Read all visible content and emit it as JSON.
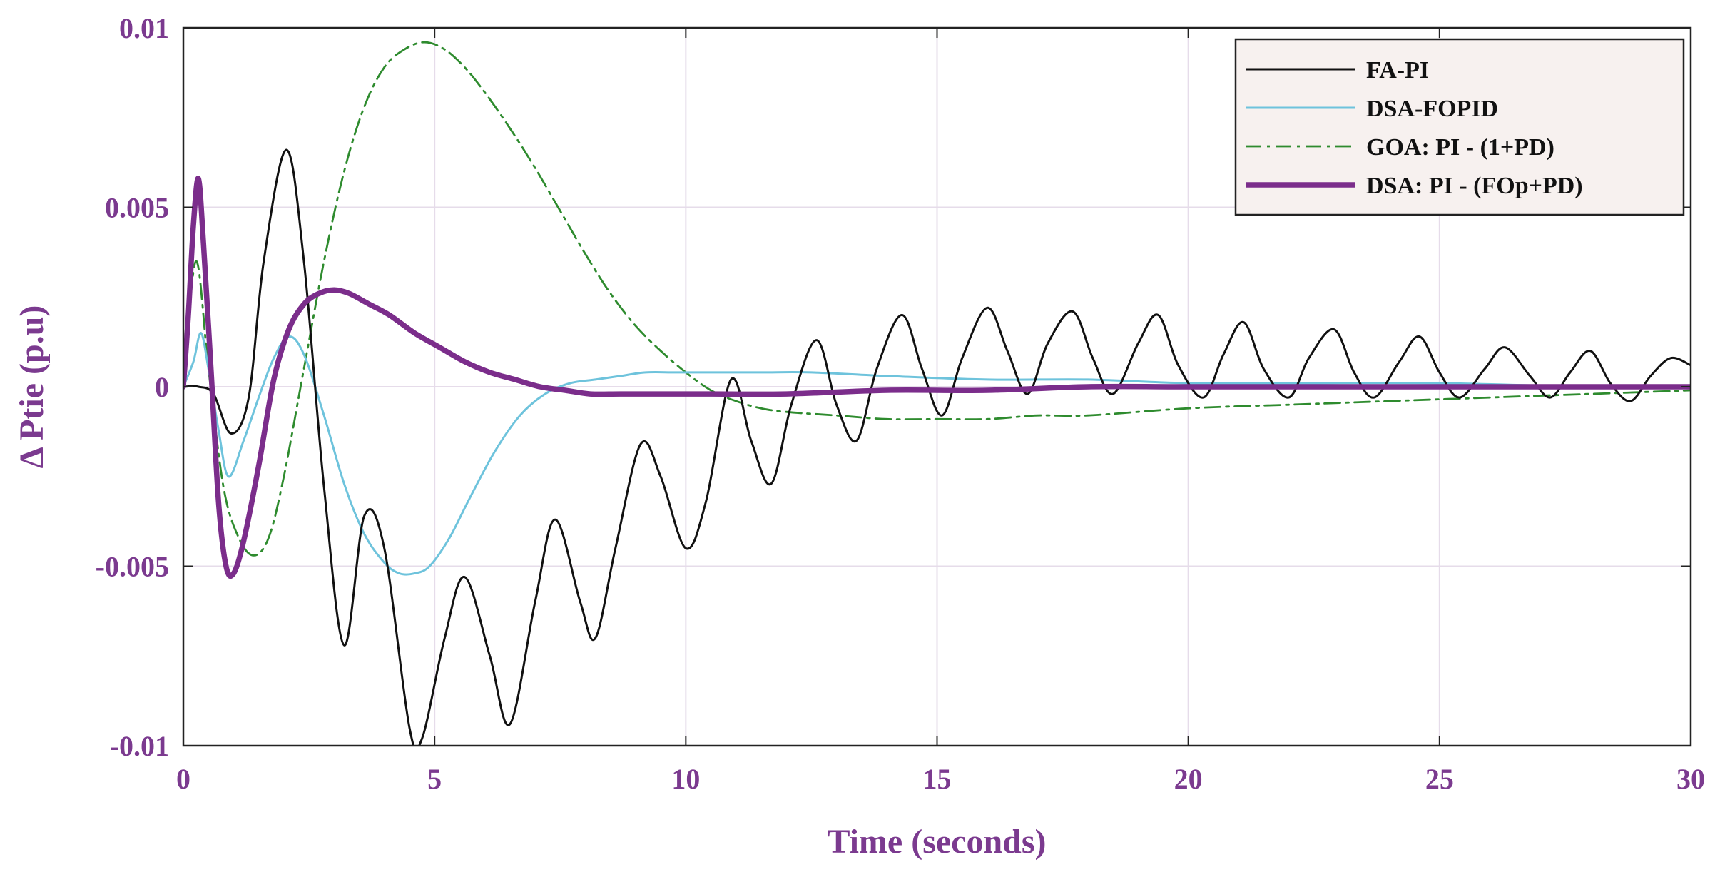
{
  "chart_data": {
    "type": "line",
    "title": "",
    "xlabel": "Time (seconds)",
    "ylabel": "Δ Ptie (p.u)",
    "xlim": [
      0,
      30
    ],
    "ylim": [
      -0.01,
      0.01
    ],
    "xticks": [
      0,
      5,
      10,
      15,
      20,
      25,
      30
    ],
    "xtick_labels": [
      "0",
      "5",
      "10",
      "15",
      "20",
      "25",
      "30"
    ],
    "yticks": [
      0.01,
      0.005,
      0,
      -0.005,
      -0.01
    ],
    "ytick_labels": [
      "0.01",
      "0.005",
      "0",
      "-0.005",
      "-0.01"
    ],
    "grid": true,
    "legend_position": "top-right",
    "series": [
      {
        "name": "FA-PI",
        "color": "#111111",
        "style": "solid",
        "x": [
          0,
          0.3,
          0.6,
          0.95,
          1.3,
          1.6,
          2.05,
          2.4,
          2.8,
          3.2,
          3.6,
          4.0,
          4.5,
          4.75,
          5.2,
          5.6,
          6.1,
          6.5,
          7.0,
          7.4,
          7.9,
          8.2,
          8.6,
          9.1,
          9.5,
          10.0,
          10.4,
          10.9,
          11.3,
          11.7,
          12.1,
          12.6,
          13.0,
          13.4,
          13.8,
          14.3,
          14.7,
          15.1,
          15.5,
          16.0,
          16.4,
          16.8,
          17.2,
          17.7,
          18.1,
          18.5,
          19.0,
          19.4,
          19.8,
          20.3,
          20.7,
          21.1,
          21.5,
          22.0,
          22.4,
          22.9,
          23.3,
          23.7,
          24.2,
          24.6,
          25.0,
          25.4,
          25.9,
          26.3,
          26.8,
          27.2,
          27.6,
          28.0,
          28.4,
          28.8,
          29.2,
          29.6,
          30.0
        ],
        "y": [
          0,
          0,
          -0.0002,
          -0.0013,
          -0.0003,
          0.0035,
          0.0066,
          0.0035,
          -0.0028,
          -0.0072,
          -0.0036,
          -0.0045,
          -0.0095,
          -0.0098,
          -0.007,
          -0.0053,
          -0.0075,
          -0.0094,
          -0.006,
          -0.0037,
          -0.006,
          -0.007,
          -0.0045,
          -0.0016,
          -0.0025,
          -0.0045,
          -0.0032,
          0.0002,
          -0.0015,
          -0.0027,
          -0.0005,
          0.0013,
          -0.0005,
          -0.0015,
          0.0005,
          0.002,
          0.0005,
          -0.0008,
          0.0008,
          0.0022,
          0.001,
          -0.0002,
          0.0012,
          0.0021,
          0.0008,
          -0.0002,
          0.0012,
          0.002,
          0.0006,
          -0.0003,
          0.0009,
          0.0018,
          0.0005,
          -0.0003,
          0.0008,
          0.0016,
          0.0004,
          -0.0003,
          0.0007,
          0.0014,
          0.0004,
          -0.0003,
          0.0005,
          0.0011,
          0.0003,
          -0.0003,
          0.0004,
          0.001,
          0.0001,
          -0.0004,
          0.0003,
          0.0008,
          0.0006
        ]
      },
      {
        "name": "DSA-FOPID",
        "color": "#6ec3dc",
        "style": "solid",
        "x": [
          0,
          0.2,
          0.35,
          0.5,
          0.7,
          0.9,
          1.2,
          1.5,
          1.8,
          2.1,
          2.4,
          2.8,
          3.2,
          3.6,
          4.0,
          4.3,
          4.6,
          4.9,
          5.3,
          5.7,
          6.2,
          6.7,
          7.2,
          7.7,
          8.2,
          8.7,
          9.2,
          9.8,
          10.5,
          11.5,
          12.5,
          14.0,
          16.0,
          18.0,
          20.0,
          22.0,
          25.0,
          28.0,
          30.0
        ],
        "y": [
          0,
          0.0007,
          0.0015,
          0.0005,
          -0.0012,
          -0.0025,
          -0.0015,
          -0.0003,
          0.0008,
          0.0014,
          0.0009,
          -0.0008,
          -0.0027,
          -0.0041,
          -0.0049,
          -0.0052,
          -0.0052,
          -0.005,
          -0.0042,
          -0.0031,
          -0.0018,
          -0.0008,
          -0.0002,
          0.0001,
          0.0002,
          0.0003,
          0.0004,
          0.0004,
          0.0004,
          0.0004,
          0.0004,
          0.0003,
          0.0002,
          0.0002,
          0.0001,
          0.0001,
          0.0001,
          0.0,
          0.0
        ]
      },
      {
        "name": "GOA: PI - (1+PD)",
        "color": "#2e8b2e",
        "style": "dashdot",
        "x": [
          0,
          0.25,
          0.5,
          0.8,
          1.1,
          1.4,
          1.7,
          2.0,
          2.4,
          2.8,
          3.2,
          3.6,
          4.0,
          4.4,
          4.8,
          5.2,
          5.6,
          6.0,
          6.5,
          7.0,
          7.5,
          8.0,
          8.5,
          9.0,
          9.5,
          10.0,
          10.5,
          11.0,
          11.5,
          12.0,
          13.0,
          14.0,
          15.0,
          16.0,
          17.0,
          18.0,
          20.0,
          22.0,
          24.0,
          26.0,
          28.0,
          30.0
        ],
        "y": [
          0,
          0.0035,
          0.0005,
          -0.0028,
          -0.0042,
          -0.0047,
          -0.0042,
          -0.0025,
          0.0005,
          0.0035,
          0.006,
          0.0078,
          0.0089,
          0.0094,
          0.0096,
          0.0094,
          0.0089,
          0.0082,
          0.0072,
          0.0061,
          0.0049,
          0.0037,
          0.0026,
          0.0017,
          0.001,
          0.0004,
          -0.0001,
          -0.0004,
          -0.0006,
          -0.0007,
          -0.0008,
          -0.0009,
          -0.0009,
          -0.0009,
          -0.0008,
          -0.0008,
          -0.0006,
          -0.0005,
          -0.0004,
          -0.0003,
          -0.0002,
          -0.0001
        ]
      },
      {
        "name": "DSA: PI - (FOp+PD)",
        "color": "#7b2d8b",
        "style": "solid-thick",
        "x": [
          0,
          0.1,
          0.2,
          0.3,
          0.4,
          0.55,
          0.7,
          0.85,
          1.0,
          1.2,
          1.5,
          1.8,
          2.1,
          2.4,
          2.7,
          3.0,
          3.3,
          3.7,
          4.1,
          4.6,
          5.1,
          5.6,
          6.1,
          6.6,
          7.1,
          7.6,
          8.1,
          8.7,
          9.5,
          10.5,
          12.0,
          14.0,
          16.0,
          18.0,
          20.0,
          22.0,
          25.0,
          28.0,
          30.0
        ],
        "y": [
          0,
          0.002,
          0.0045,
          0.0058,
          0.004,
          0.0005,
          -0.0032,
          -0.005,
          -0.0052,
          -0.0043,
          -0.0022,
          0.0002,
          0.0016,
          0.0023,
          0.0026,
          0.0027,
          0.0026,
          0.0023,
          0.002,
          0.0015,
          0.0011,
          0.0007,
          0.0004,
          0.0002,
          0.0,
          -0.0001,
          -0.0002,
          -0.0002,
          -0.0002,
          -0.0002,
          -0.0002,
          -0.0001,
          -0.0001,
          0.0,
          0.0,
          0.0,
          0.0,
          0.0,
          0.0
        ]
      }
    ]
  }
}
